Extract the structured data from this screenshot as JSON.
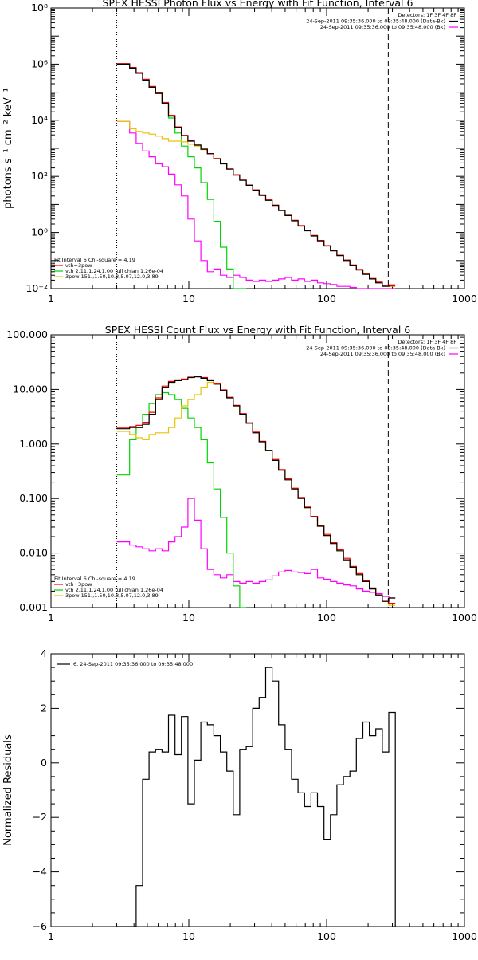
{
  "colors": {
    "total": "#ff0000",
    "thermal": "#00d400",
    "nonthermal": "#e6c400",
    "background": "#ff00ff",
    "data": "#000000"
  },
  "chart_data": [
    {
      "type": "line",
      "title": "SPEX HESSI Photon Flux vs Energy with Fit Function, Interval 6",
      "ylabel": "photons s⁻¹ cm⁻² keV⁻¹",
      "xlabel": "",
      "xscale": "log",
      "yscale": "log",
      "xlim": [
        1,
        1000
      ],
      "ylim": [
        0.01,
        100000000
      ],
      "x_ticks": [
        "1",
        "10",
        "100",
        "1000"
      ],
      "y_ticks": [
        "10⁻²",
        "10⁰",
        "10²",
        "10⁴",
        "10⁶",
        "10⁸"
      ],
      "vlines": [
        {
          "x": 3,
          "style": "dotted"
        },
        {
          "x": 280,
          "style": "dashed"
        }
      ],
      "legend_top": [
        "Detectors: 1F 3F 4F 8F",
        "24-Sep-2011 09:35:36.000 to 09:35:48.000 (Data-Bk)",
        "24-Sep-2011 09:35:36.000 to 09:35:48.000 (Bk)"
      ],
      "legend_bottom": [
        "Fit Interval 6   Chi-square = 4.19",
        "vth+3pow",
        "vth 2.11,1.24,1.00  full chian 1.26e-04",
        "3pow 151.,1.50,10.8,5.07,12.0,3.89"
      ],
      "energies": [
        3.0,
        3.34,
        3.72,
        4.15,
        4.62,
        5.15,
        5.74,
        6.39,
        7.12,
        7.94,
        8.84,
        9.85,
        10.98,
        12.23,
        13.63,
        15.19,
        16.93,
        18.86,
        21.02,
        23.42,
        26.1,
        29.08,
        32.41,
        36.11,
        40.24,
        44.84,
        49.96,
        55.68,
        62.04,
        69.13,
        77.04,
        85.84,
        95.66,
        106.6,
        118.78,
        132.36,
        147.5,
        164.36,
        183.15,
        204.09,
        227.42,
        253.42,
        282.38
      ],
      "series": [
        {
          "name": "Data-Bk",
          "color_key": "data",
          "values": [
            1000000.0,
            1000000.0,
            720000.0,
            470000.0,
            270000.0,
            150000.0,
            90000.0,
            40000.0,
            14000.0,
            5500.0,
            2800.0,
            1800.0,
            1300.0,
            930.0,
            640.0,
            420.0,
            280.0,
            180.0,
            110.0,
            72.0,
            48.0,
            32.0,
            21.0,
            14.0,
            9.2,
            6.0,
            4.0,
            2.6,
            1.7,
            1.15,
            0.75,
            0.5,
            0.33,
            0.22,
            0.15,
            0.1,
            0.068,
            0.046,
            0.032,
            0.022,
            0.016,
            0.012,
            0.0135
          ]
        },
        {
          "name": "vth+3pow",
          "color_key": "total",
          "values": [
            1050000.0,
            1050000.0,
            760000.0,
            500000.0,
            290000.0,
            160000.0,
            95000.0,
            43000.0,
            15000.0,
            5800.0,
            2900.0,
            1850.0,
            1320.0,
            950.0,
            650.0,
            430.0,
            285.0,
            185.0,
            115.0,
            74.0,
            49.0,
            33.0,
            22.0,
            14.5,
            9.5,
            6.2,
            4.1,
            2.7,
            1.75,
            1.18,
            0.78,
            0.52,
            0.34,
            0.23,
            0.155,
            0.105,
            0.07,
            0.048,
            0.033,
            0.023,
            0.017,
            0.013,
            0.0125
          ]
        },
        {
          "name": "vth",
          "color_key": "thermal",
          "values": [
            1000000.0,
            1000000.0,
            720000.0,
            470000.0,
            270000.0,
            150000.0,
            90000.0,
            38000.0,
            12000.0,
            3500.0,
            1200.0,
            500.0,
            200.0,
            60.0,
            15.0,
            2.5,
            0.3,
            0.05,
            0.008,
            0.001
          ]
        },
        {
          "name": "3pow",
          "color_key": "nonthermal",
          "values": [
            9000.0,
            9000.0,
            5000.0,
            4000.0,
            3500.0,
            3200.0,
            2700.0,
            2200.0,
            1800.0,
            1800.0,
            1700.0,
            1400.0,
            1200.0,
            900.0,
            640.0,
            430.0,
            285.0,
            185.0,
            115.0,
            74.0,
            49.0,
            33.0,
            22.0,
            14.5,
            9.5,
            6.2,
            4.1,
            2.7,
            1.75,
            1.18,
            0.78,
            0.52,
            0.34,
            0.23,
            0.155,
            0.105,
            0.07,
            0.048,
            0.033,
            0.023,
            0.017,
            0.013,
            0.012
          ]
        },
        {
          "name": "Bk",
          "color_key": "background",
          "values": [
            9000.0,
            9000.0,
            3500.0,
            1500.0,
            800.0,
            500.0,
            280.0,
            220.0,
            120.0,
            50.0,
            20.0,
            3.0,
            0.5,
            0.1,
            0.04,
            0.05,
            0.03,
            0.025,
            0.03,
            0.025,
            0.02,
            0.018,
            0.02,
            0.018,
            0.02,
            0.022,
            0.025,
            0.02,
            0.022,
            0.018,
            0.02,
            0.016,
            0.015,
            0.014,
            0.012,
            0.012,
            0.011,
            0.01,
            0.009,
            0.009,
            0.008,
            0.008,
            0.008
          ]
        }
      ]
    },
    {
      "type": "line",
      "title": "SPEX HESSI Count Flux vs Energy with Fit Function, Interval 6",
      "ylabel": "",
      "xlabel": "",
      "xscale": "log",
      "yscale": "log",
      "xlim": [
        1,
        1000
      ],
      "ylim": [
        0.001,
        100
      ],
      "x_ticks": [
        "1",
        "10",
        "100",
        "1000"
      ],
      "y_ticks": [
        "0.001",
        "0.010",
        "0.100",
        "1.000",
        "10.000",
        "100.000"
      ],
      "vlines": [
        {
          "x": 3,
          "style": "dotted"
        },
        {
          "x": 280,
          "style": "dashed"
        }
      ],
      "legend_top": [
        "Detectors: 1F 3F 4F 8F",
        "24-Sep-2011 09:35:36.000 to 09:35:48.000 (Data-Bk)",
        "24-Sep-2011 09:35:36.000 to 09:35:48.000 (Bk)"
      ],
      "legend_bottom": [
        "Fit Interval 6   Chi-square = 4.19",
        "vth+3pow",
        "vth 2.11,1.24,1.00  full chian 1.26e-04",
        "3pow 151.,1.50,10.8,5.07,12.0,3.89"
      ],
      "energies": [
        3.0,
        3.34,
        3.72,
        4.15,
        4.62,
        5.15,
        5.74,
        6.39,
        7.12,
        7.94,
        8.84,
        9.85,
        10.98,
        12.23,
        13.63,
        15.19,
        16.93,
        18.86,
        21.02,
        23.42,
        26.1,
        29.08,
        32.41,
        36.11,
        40.24,
        44.84,
        49.96,
        55.68,
        62.04,
        69.13,
        77.04,
        85.84,
        95.66,
        106.6,
        118.78,
        132.36,
        147.5,
        164.36,
        183.15,
        204.09,
        227.42,
        253.42,
        282.38
      ],
      "series": [
        {
          "name": "Data-Bk",
          "color_key": "data",
          "values": [
            1.9,
            1.9,
            2.0,
            2.0,
            2.3,
            3.5,
            6.5,
            11.0,
            13.5,
            14.5,
            15.0,
            16.5,
            17.0,
            16.0,
            14.5,
            12.5,
            9.5,
            7.0,
            5.0,
            3.5,
            2.4,
            1.6,
            1.1,
            0.75,
            0.5,
            0.33,
            0.22,
            0.15,
            0.1,
            0.068,
            0.046,
            0.031,
            0.021,
            0.015,
            0.011,
            0.0075,
            0.0055,
            0.004,
            0.003,
            0.0022,
            0.0017,
            0.0013,
            0.0015
          ]
        },
        {
          "name": "vth+3pow",
          "color_key": "total",
          "values": [
            2.0,
            2.0,
            2.1,
            2.2,
            2.5,
            3.8,
            7.0,
            11.5,
            14.0,
            15.0,
            15.5,
            16.8,
            17.5,
            16.5,
            15.0,
            13.0,
            9.8,
            7.2,
            5.1,
            3.6,
            2.45,
            1.65,
            1.12,
            0.77,
            0.52,
            0.34,
            0.23,
            0.155,
            0.105,
            0.07,
            0.047,
            0.032,
            0.022,
            0.0155,
            0.0115,
            0.008,
            0.0057,
            0.0042,
            0.0031,
            0.0023,
            0.0017,
            0.0013,
            0.0012
          ]
        },
        {
          "name": "vth",
          "color_key": "thermal",
          "values": [
            0.27,
            0.27,
            1.2,
            2.0,
            3.5,
            5.5,
            8.0,
            8.7,
            8.0,
            6.5,
            4.5,
            3.0,
            2.0,
            1.2,
            0.45,
            0.15,
            0.045,
            0.01,
            0.0025,
            0.001
          ]
        },
        {
          "name": "3pow",
          "color_key": "nonthermal",
          "values": [
            1.7,
            1.7,
            1.5,
            1.3,
            1.2,
            1.5,
            1.6,
            1.6,
            2.0,
            3.0,
            5.0,
            6.5,
            8.0,
            11.0,
            13.5,
            12.5,
            9.5,
            7.0,
            5.0,
            3.5,
            2.4,
            1.6,
            1.1,
            0.75,
            0.5,
            0.33,
            0.22,
            0.15,
            0.1,
            0.068,
            0.046,
            0.031,
            0.021,
            0.015,
            0.011,
            0.0075,
            0.0055,
            0.004,
            0.003,
            0.0022,
            0.0017,
            0.0013,
            0.0011
          ]
        },
        {
          "name": "Bk",
          "color_key": "background",
          "values": [
            0.016,
            0.016,
            0.014,
            0.013,
            0.012,
            0.011,
            0.012,
            0.011,
            0.016,
            0.02,
            0.03,
            0.1,
            0.04,
            0.012,
            0.005,
            0.004,
            0.0035,
            0.004,
            0.003,
            0.0028,
            0.003,
            0.0028,
            0.003,
            0.0032,
            0.0038,
            0.0045,
            0.0048,
            0.0045,
            0.0044,
            0.0042,
            0.005,
            0.0035,
            0.0033,
            0.003,
            0.0028,
            0.0026,
            0.0025,
            0.0022,
            0.002,
            0.0019,
            0.0018,
            0.0016,
            0.0015
          ]
        }
      ]
    },
    {
      "type": "line",
      "title": "",
      "ylabel": "Normalized Residuals",
      "xlabel": "",
      "xscale": "log",
      "yscale": "linear",
      "xlim": [
        1,
        1000
      ],
      "ylim": [
        -6,
        4
      ],
      "x_ticks": [
        "1",
        "10",
        "100",
        "1000"
      ],
      "y_ticks": [
        "−6",
        "−4",
        "−2",
        "0",
        "2",
        "4"
      ],
      "legend_top": [
        "6. 24-Sep-2011 09:35:36.000 to 09:35:48.000"
      ],
      "energies": [
        3.0,
        3.34,
        3.72,
        4.15,
        4.62,
        5.15,
        5.74,
        6.39,
        7.12,
        7.94,
        8.84,
        9.85,
        10.98,
        12.23,
        13.63,
        15.19,
        16.93,
        18.86,
        21.02,
        23.42,
        26.1,
        29.08,
        32.41,
        36.11,
        40.24,
        44.84,
        49.96,
        55.68,
        62.04,
        69.13,
        77.04,
        85.84,
        95.66,
        106.6,
        118.78,
        132.36,
        147.5,
        164.36,
        183.15,
        204.09,
        227.42,
        253.42,
        282.38
      ],
      "series": [
        {
          "name": "6. 24-Sep-2011 09:35:36.000 to 09:35:48.000",
          "color_key": "data",
          "values": [
            -6.0,
            -6.0,
            -6.0,
            -4.5,
            -0.6,
            0.4,
            0.5,
            0.4,
            1.75,
            0.3,
            1.7,
            -1.5,
            0.1,
            1.5,
            1.4,
            1.0,
            0.4,
            -0.3,
            -1.9,
            0.5,
            0.6,
            2.0,
            2.4,
            3.5,
            3.0,
            1.4,
            0.5,
            -0.6,
            -1.1,
            -1.6,
            -1.1,
            -1.6,
            -2.8,
            -1.9,
            -0.8,
            -0.5,
            -0.3,
            0.9,
            1.5,
            1.0,
            1.25,
            0.4,
            1.85
          ]
        }
      ]
    }
  ]
}
